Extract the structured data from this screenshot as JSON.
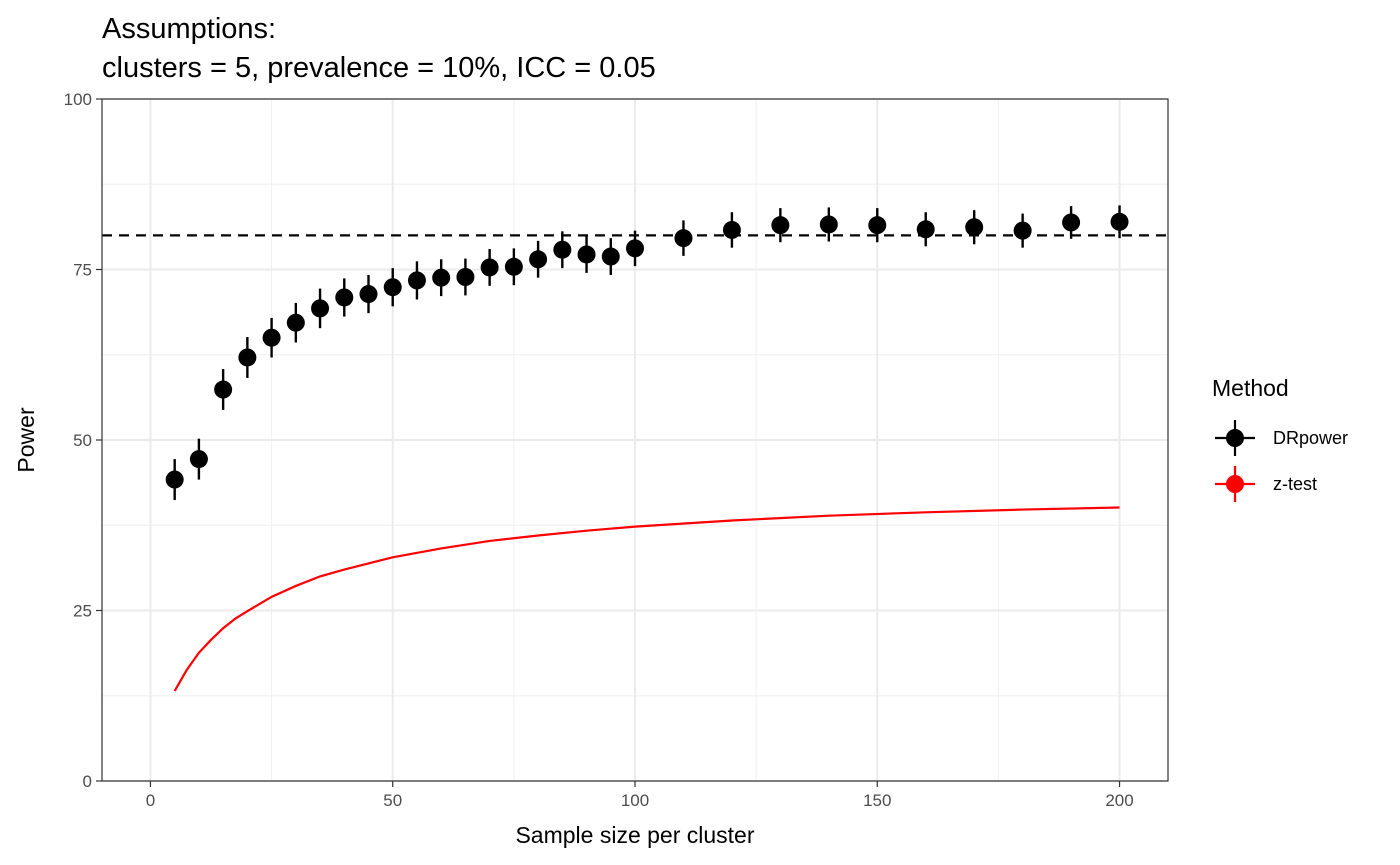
{
  "chart_data": {
    "type": "scatter",
    "title_lines": [
      "Assumptions:",
      "clusters = 5, prevalence = 10%, ICC = 0.05"
    ],
    "xlabel": "Sample size per cluster",
    "ylabel": "Power",
    "xlim": [
      -10,
      210
    ],
    "ylim": [
      0,
      100
    ],
    "x_ticks": [
      0,
      50,
      100,
      150,
      200
    ],
    "x_tick_labels": [
      "0",
      "50",
      "100",
      "150",
      "200"
    ],
    "y_ticks": [
      0,
      25,
      50,
      75,
      100
    ],
    "y_tick_labels": [
      "0",
      "25",
      "50",
      "75",
      "100"
    ],
    "grid": true,
    "reference_line": {
      "y": 80,
      "style": "dashed",
      "color": "#000000"
    },
    "legend": {
      "title": "Method",
      "position": "right",
      "entries": [
        {
          "label": "DRpower",
          "color": "#000000"
        },
        {
          "label": "z-test",
          "color": "#ff0000"
        }
      ]
    },
    "series": [
      {
        "name": "DRpower",
        "kind": "points_with_error_bars",
        "color": "#000000",
        "x": [
          5,
          10,
          15,
          20,
          25,
          30,
          35,
          40,
          45,
          50,
          55,
          60,
          65,
          70,
          75,
          80,
          85,
          90,
          95,
          100,
          110,
          120,
          130,
          140,
          150,
          160,
          170,
          180,
          190,
          200
        ],
        "y": [
          44.2,
          47.2,
          57.4,
          62.1,
          65.0,
          67.2,
          69.3,
          70.9,
          71.4,
          72.4,
          73.4,
          73.8,
          73.9,
          75.3,
          75.4,
          76.5,
          77.9,
          77.2,
          76.9,
          78.1,
          79.6,
          80.8,
          81.5,
          81.6,
          81.5,
          80.9,
          81.2,
          80.7,
          81.9,
          82.0
        ],
        "lower": [
          41.2,
          44.2,
          54.4,
          59.1,
          62.1,
          64.3,
          66.4,
          68.1,
          68.6,
          69.6,
          70.6,
          71.1,
          71.2,
          72.6,
          72.7,
          73.8,
          75.2,
          74.5,
          74.2,
          75.5,
          77.0,
          78.2,
          79.0,
          79.1,
          79.0,
          78.4,
          78.7,
          78.2,
          79.5,
          79.6
        ],
        "upper": [
          47.2,
          50.2,
          60.4,
          65.1,
          67.9,
          70.1,
          72.2,
          73.7,
          74.2,
          75.2,
          76.2,
          76.5,
          76.6,
          78.0,
          78.1,
          79.2,
          80.6,
          79.9,
          79.6,
          80.7,
          82.2,
          83.4,
          84.0,
          84.1,
          84.0,
          83.4,
          83.7,
          83.2,
          84.3,
          84.4
        ]
      },
      {
        "name": "z-test",
        "kind": "line",
        "color": "#ff0000",
        "x": [
          5,
          7.5,
          10,
          12.5,
          15,
          17.5,
          20,
          25,
          30,
          35,
          40,
          50,
          60,
          70,
          80,
          90,
          100,
          120,
          140,
          160,
          180,
          200
        ],
        "y": [
          13.2,
          16.3,
          18.8,
          20.7,
          22.4,
          23.8,
          24.9,
          27.0,
          28.6,
          30.0,
          31.0,
          32.8,
          34.1,
          35.2,
          36.0,
          36.7,
          37.3,
          38.2,
          38.9,
          39.4,
          39.8,
          40.1
        ]
      }
    ]
  }
}
